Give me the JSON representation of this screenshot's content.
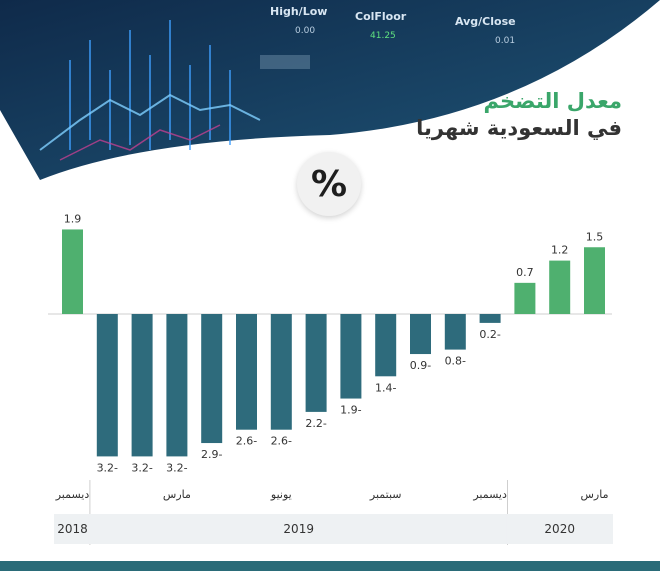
{
  "header": {
    "title_line1": "معدل التضخم",
    "title_line2": "في السعودية شهريا",
    "percent_symbol": "%"
  },
  "banner_text": {
    "price_header": "High/Low",
    "col_floor": "ColFloor",
    "avg_close": "Avg/Close",
    "value1": "0.00",
    "value2": "41.25",
    "value3": "0.01"
  },
  "chart_data": {
    "type": "bar",
    "title": "معدل التضخم في السعودية شهريا",
    "xlabel": "",
    "ylabel": "",
    "ylim": [
      -3.5,
      2.0
    ],
    "grid": false,
    "values": [
      1.9,
      -3.2,
      -3.2,
      -3.2,
      -2.9,
      -2.6,
      -2.6,
      -2.2,
      -1.9,
      -1.4,
      -0.9,
      -0.8,
      -0.2,
      0.7,
      1.2,
      1.5
    ],
    "value_labels": [
      "1.9",
      "3.2-",
      "3.2-",
      "3.2-",
      "2.9-",
      "2.6-",
      "2.6-",
      "2.2-",
      "1.9-",
      "1.4-",
      "0.9-",
      "0.8-",
      "0.2-",
      "0.7",
      "1.2",
      "1.5"
    ],
    "month_labels": [
      {
        "index": 0,
        "label": "ديسمبر"
      },
      {
        "index": 3,
        "label": "مارس"
      },
      {
        "index": 6,
        "label": "يونيو"
      },
      {
        "index": 9,
        "label": "سبتمبر"
      },
      {
        "index": 12,
        "label": "ديسمبر"
      },
      {
        "index": 15,
        "label": "مارس"
      }
    ],
    "years": [
      {
        "label": "2018",
        "start": 0,
        "end": 0
      },
      {
        "label": "2019",
        "start": 1,
        "end": 12
      },
      {
        "label": "2020",
        "start": 13,
        "end": 15
      }
    ],
    "colors": {
      "positive": "#4fb06f",
      "negative": "#2e6b7c",
      "axis": "#cfcfcf",
      "label": "#333333",
      "year_bg": "#eef1f3"
    }
  }
}
